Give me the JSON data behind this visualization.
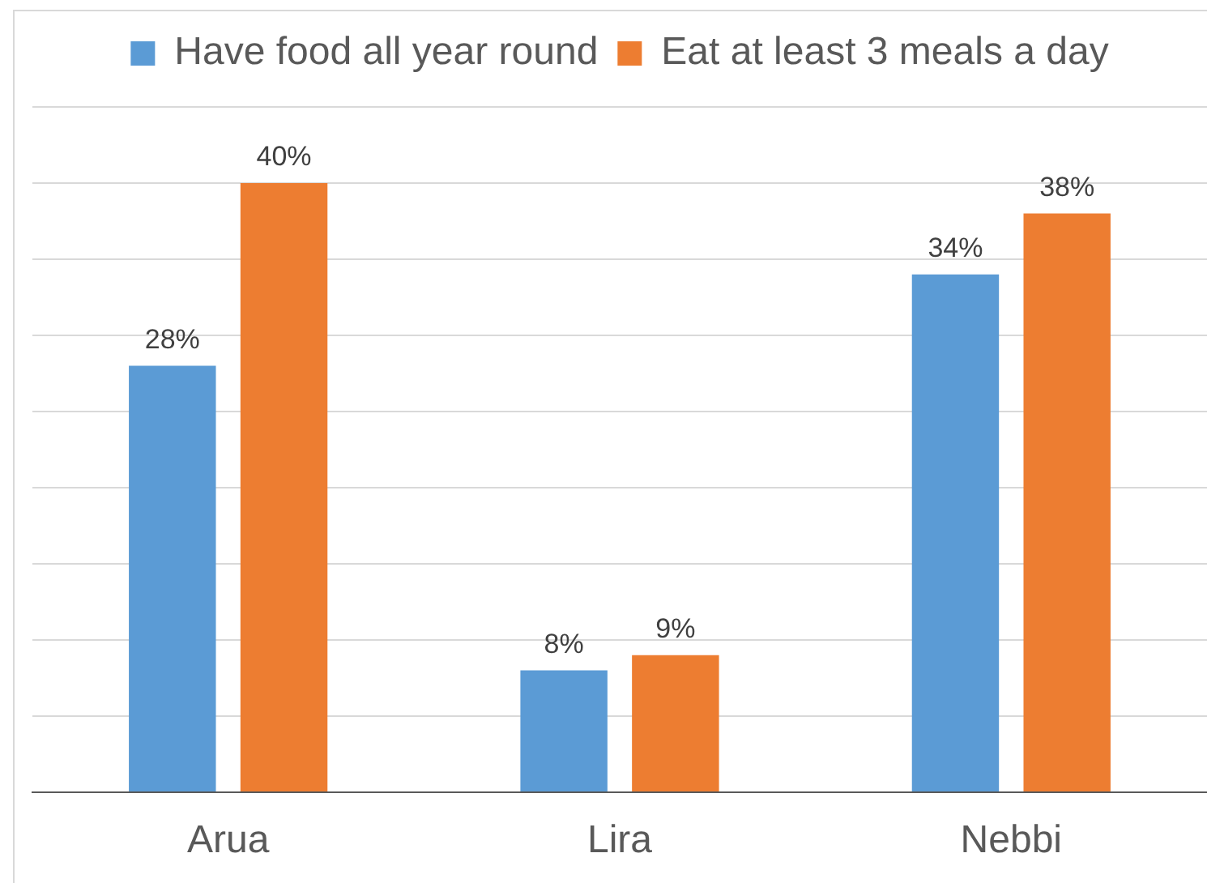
{
  "chart_data": {
    "type": "bar",
    "categories": [
      "Arua",
      "Lira",
      "Nebbi"
    ],
    "series": [
      {
        "name": "Have food all year round",
        "color": "#5b9bd5",
        "values": [
          28,
          8,
          34
        ],
        "value_labels": [
          "28%",
          "8%",
          "34%"
        ]
      },
      {
        "name": "Eat at least 3 meals a day",
        "color": "#ed7d31",
        "values": [
          40,
          9,
          38
        ],
        "value_labels": [
          "40%",
          "9%",
          "38%"
        ]
      }
    ],
    "ylim": [
      0,
      45
    ],
    "yticks": [
      {
        "value": 0,
        "label": null
      },
      {
        "value": 5,
        "label": null
      },
      {
        "value": 10,
        "label": null
      },
      {
        "value": 15,
        "label": null
      },
      {
        "value": 20,
        "label": null
      },
      {
        "value": 25,
        "label": null
      },
      {
        "value": 30,
        "label": null
      },
      {
        "value": 35,
        "label": null
      },
      {
        "value": 40,
        "label": null
      },
      {
        "value": 45,
        "label": null
      }
    ],
    "grid": "y",
    "legend": "top",
    "tick_labels": "x"
  }
}
